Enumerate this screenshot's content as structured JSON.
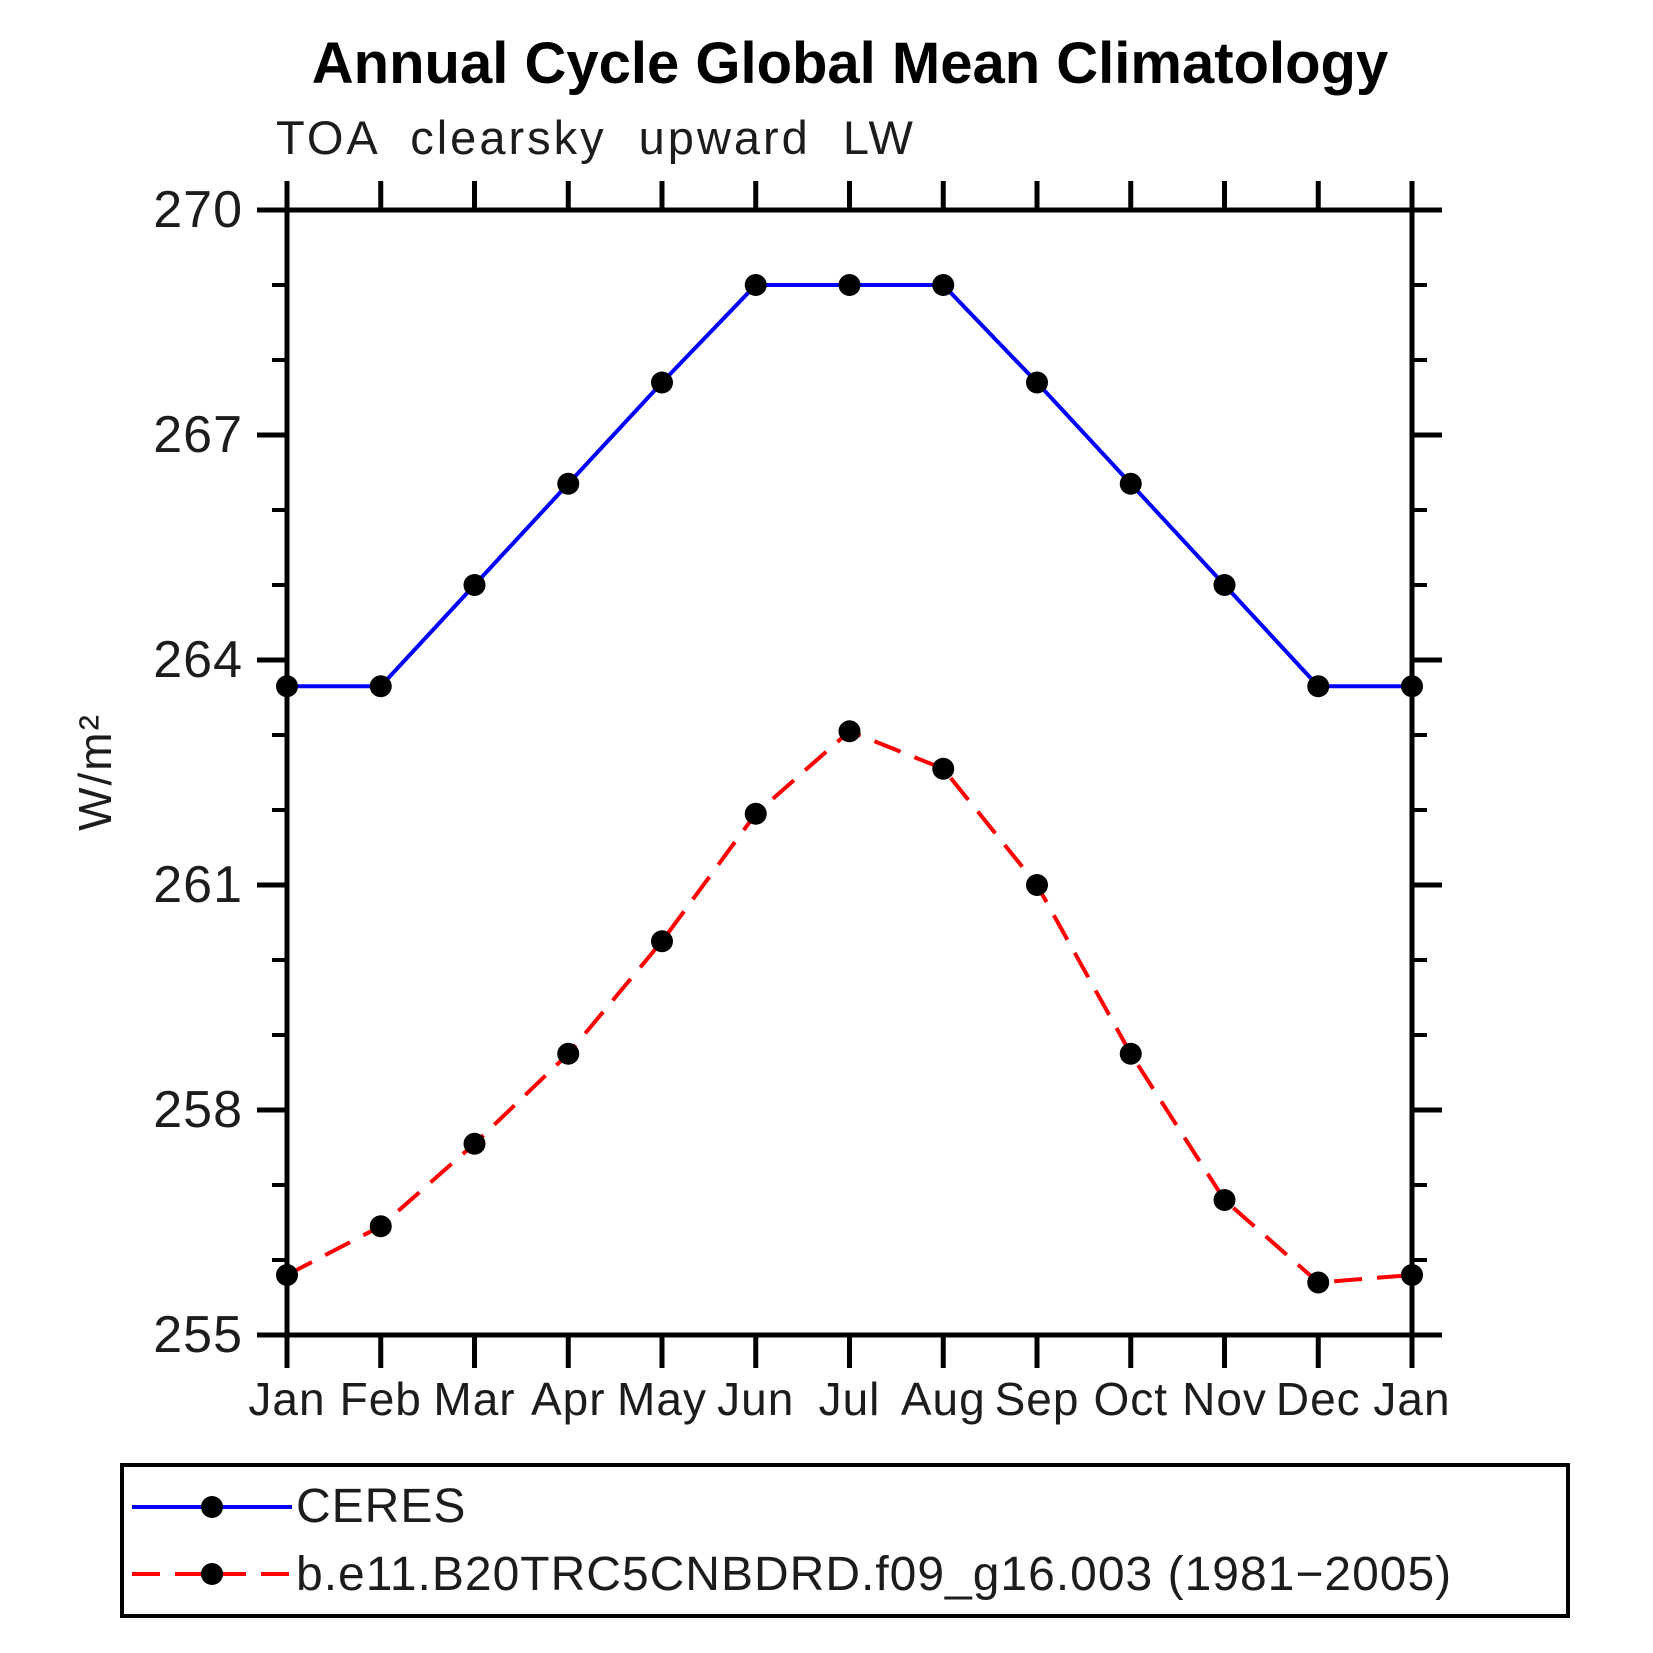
{
  "title": "Annual Cycle Global Mean Climatology",
  "subtitle": "TOA clearsky upward LW",
  "colors": {
    "ceres_line": "#0000ff",
    "model_line": "#ff0000",
    "marker": "#000000",
    "axis": "#000000",
    "background": "#ffffff"
  },
  "chart_data": {
    "type": "line",
    "title": "Annual Cycle Global Mean Climatology",
    "subtitle": "TOA clearsky upward LW",
    "xlabel": "",
    "ylabel": "W/m²",
    "categories": [
      "Jan",
      "Feb",
      "Mar",
      "Apr",
      "May",
      "Jun",
      "Jul",
      "Aug",
      "Sep",
      "Oct",
      "Nov",
      "Dec",
      "Jan"
    ],
    "ylim": [
      255,
      270
    ],
    "yticks_major": [
      255,
      258,
      261,
      264,
      267,
      270
    ],
    "yticks_minor_step": 1,
    "grid": false,
    "legend_position": "bottom-box",
    "series": [
      {
        "name": "CERES",
        "color": "#0000ff",
        "line_style": "solid",
        "marker": "circle",
        "marker_color": "#000000",
        "values": [
          263.65,
          263.65,
          265.0,
          266.35,
          267.7,
          269.0,
          269.0,
          269.0,
          267.7,
          266.35,
          265.0,
          263.65,
          263.65
        ]
      },
      {
        "name": "b.e11.B20TRC5CNBDRD.f09_g16.003 (1981−2005)",
        "color": "#ff0000",
        "line_style": "dashed",
        "marker": "circle",
        "marker_color": "#000000",
        "values": [
          255.8,
          256.45,
          257.55,
          258.75,
          260.25,
          261.95,
          263.05,
          262.55,
          261.0,
          258.75,
          256.8,
          255.7,
          255.8
        ]
      }
    ]
  }
}
